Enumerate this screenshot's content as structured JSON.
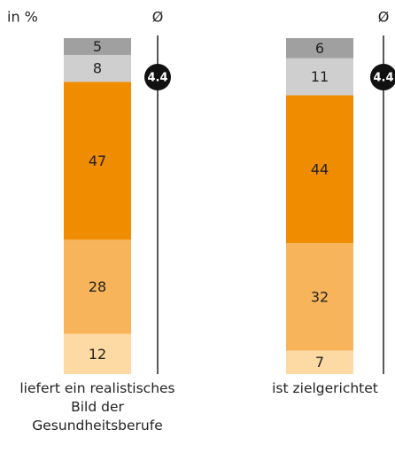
{
  "chart_data": {
    "type": "stacked_bar",
    "unit_label": "in %",
    "avg_symbol": "Ø",
    "categories": [
      "liefert ein realistisches Bild der Gesundheitsberufe",
      "ist zielgerichtet"
    ],
    "series": [
      {
        "color": "#fdd9a3",
        "values": [
          12,
          7
        ]
      },
      {
        "color": "#f8b45a",
        "values": [
          28,
          32
        ]
      },
      {
        "color": "#f08c00",
        "values": [
          47,
          44
        ]
      },
      {
        "color": "#cfcfcf",
        "values": [
          8,
          11
        ]
      },
      {
        "color": "#a0a0a0",
        "values": [
          5,
          6
        ]
      }
    ],
    "averages": [
      4.4,
      4.4
    ],
    "ylim": [
      0,
      100
    ]
  }
}
